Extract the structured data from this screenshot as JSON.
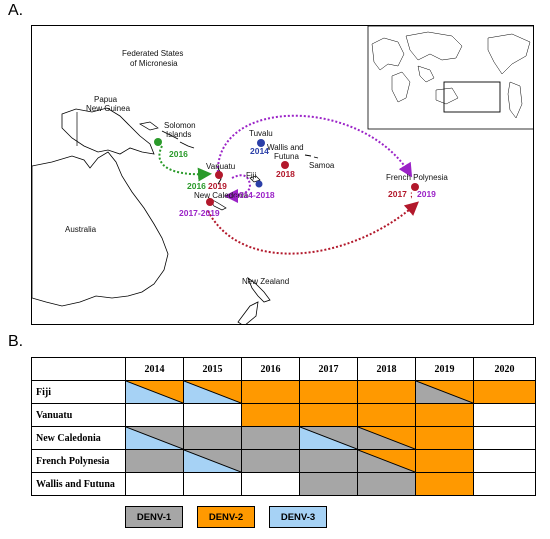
{
  "panel_a_label": "A.",
  "panel_b_label": "B.",
  "map_labels": {
    "micronesia_1": "Federated States",
    "micronesia_2": "of Micronesia",
    "png_1": "Papua",
    "png_2": "New Guinea",
    "solomon_1": "Solomon",
    "solomon_2": "Islands",
    "vanuatu": "Vanuatu",
    "new_caledonia": "New Caledonia",
    "fiji": "Fiji",
    "tuvalu": "Tuvalu",
    "wallis_1": "Wallis and",
    "wallis_2": "Futuna",
    "samoa": "Samoa",
    "french_polynesia": "French Polynesia",
    "australia": "Australia",
    "new_zealand": "New Zealand"
  },
  "map_years": {
    "solomon": "2016",
    "vanuatu_green": "2016",
    "vanuatu_red": "2019",
    "new_caledonia": "2017-2019",
    "fiji": "2014-2018",
    "tuvalu": "2014",
    "wallis": "2018",
    "fp_red": "2017",
    "fp_sep": ";",
    "fp_purple": "2019"
  },
  "table": {
    "years": [
      "2014",
      "2015",
      "2016",
      "2017",
      "2018",
      "2019",
      "2020"
    ],
    "rows": [
      {
        "name": "Fiji",
        "cells": [
          "blue/orange",
          "blue/orange",
          "orange",
          "orange",
          "orange",
          "grey/orange",
          "orange"
        ]
      },
      {
        "name": "Vanuatu",
        "cells": [
          "white",
          "white",
          "orange",
          "orange",
          "orange",
          "orange",
          "white"
        ]
      },
      {
        "name": "New Caledonia",
        "cells": [
          "blue/grey",
          "grey",
          "grey",
          "blue/grey",
          "grey/orange",
          "orange",
          "white"
        ]
      },
      {
        "name": "French Polynesia",
        "cells": [
          "grey",
          "blue/grey",
          "grey",
          "grey",
          "grey/orange",
          "orange",
          "white"
        ]
      },
      {
        "name": "Wallis and Futuna",
        "cells": [
          "white",
          "white",
          "white",
          "grey",
          "grey",
          "orange",
          "white"
        ]
      }
    ]
  },
  "legend": [
    {
      "label": "DENV-1",
      "color": "#a6a6a6"
    },
    {
      "label": "DENV-2",
      "color": "#ff9900"
    },
    {
      "label": "DENV-3",
      "color": "#a6d2f5"
    }
  ],
  "colors": {
    "grey": "#a6a6a6",
    "orange": "#ff9900",
    "blue": "#a6d2f5",
    "green": "#2a9a2a",
    "red": "#b2182b",
    "purple": "#9b23c7",
    "navy": "#2b3fa8"
  }
}
